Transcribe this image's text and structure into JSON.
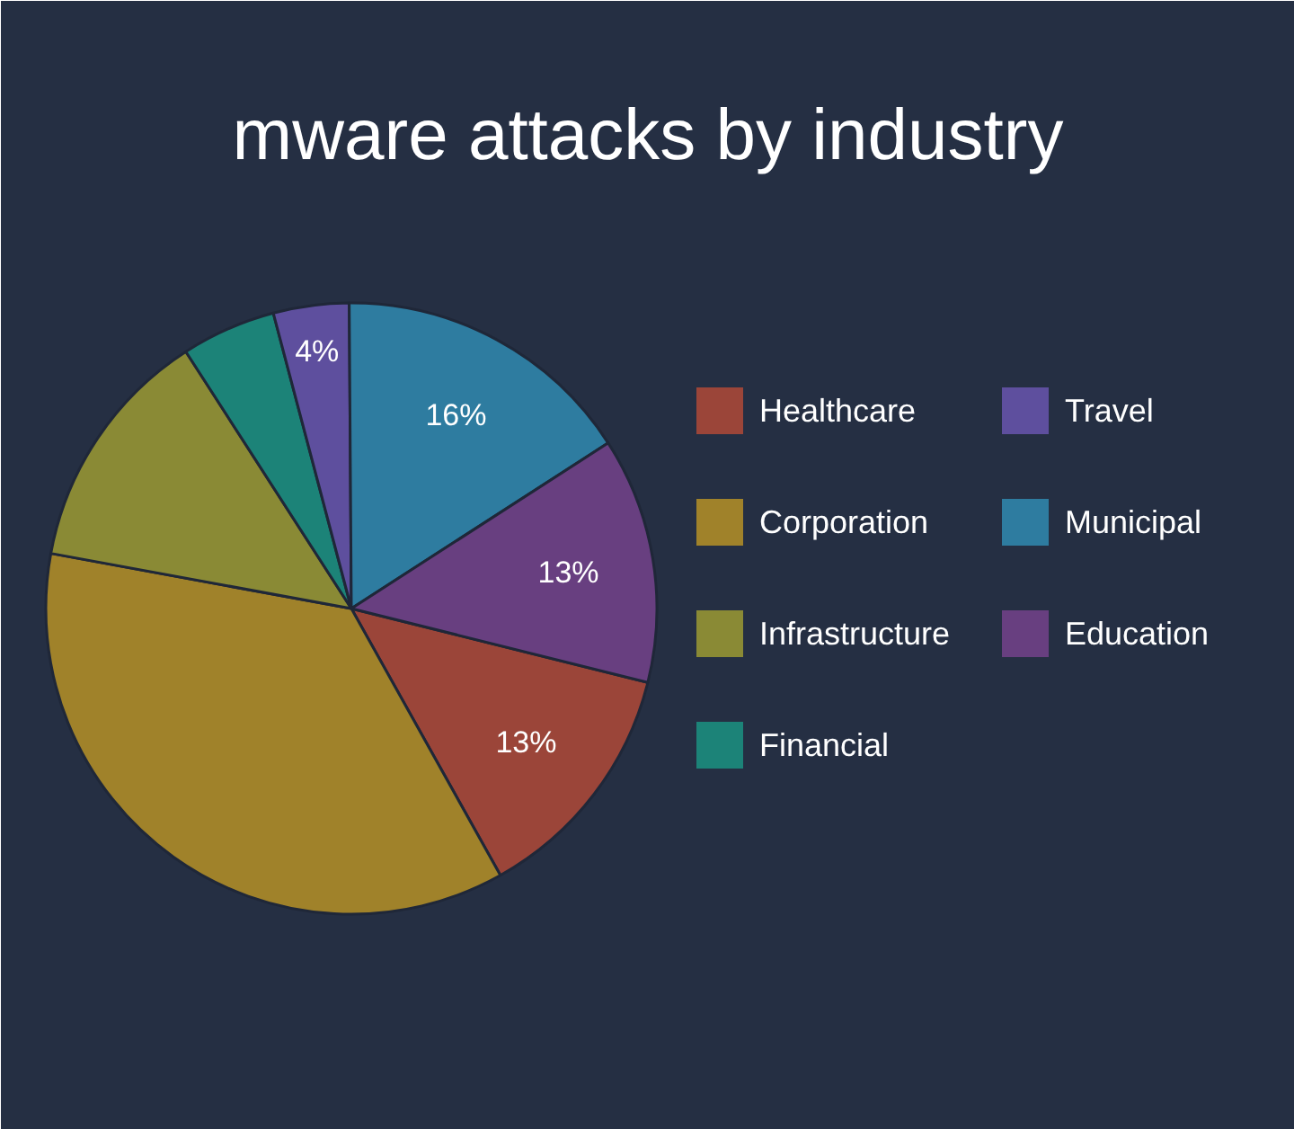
{
  "chart_data": {
    "type": "pie",
    "title": "mware attacks by industry",
    "categories": [
      "Healthcare",
      "Corporation",
      "Infrastructure",
      "Financial",
      "Travel",
      "Municipal",
      "Education"
    ],
    "values": [
      13,
      36,
      13,
      5,
      4,
      16,
      13
    ],
    "colors": [
      "#9b4539",
      "#a0822a",
      "#8a8a35",
      "#1c8378",
      "#5e4f9e",
      "#2e7ca0",
      "#683f80"
    ],
    "value_labels": [
      "13%",
      null,
      null,
      null,
      "4%",
      "16%",
      "13%"
    ],
    "legend": "right"
  }
}
